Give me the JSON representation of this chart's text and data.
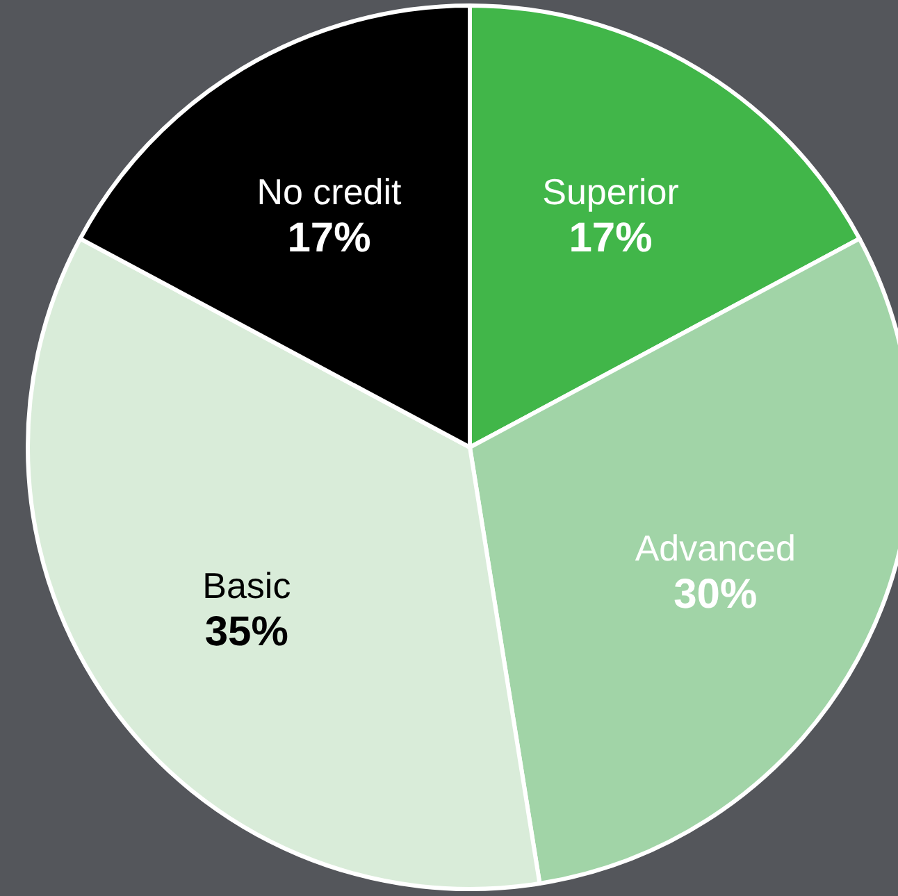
{
  "chart_data": {
    "type": "pie",
    "categories": [
      "Superior",
      "Advanced",
      "Basic",
      "No credit"
    ],
    "values": [
      17,
      30,
      35,
      17
    ],
    "colors": [
      "#41b649",
      "#a1d4a7",
      "#d9ecd9",
      "#000000"
    ],
    "value_labels": [
      "17%",
      "30%",
      "35%",
      "17%"
    ]
  }
}
